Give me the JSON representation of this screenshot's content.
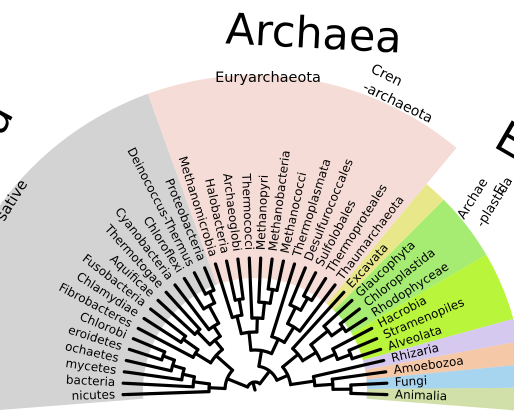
{
  "domain_titles": {
    "bacteria_fragment": "ia",
    "bacteria_sub_fragment": "sative",
    "archaea": "Archaea",
    "euryarchaeota": "Euryarchaeota",
    "crenarchaeota_top": "Cren",
    "crenarchaeota_bottom": "-archaeota",
    "eukaryota_fragment": "E",
    "archaeplastida_top": "Archae",
    "archaeplastida_bottom": "-plastida"
  },
  "colors": {
    "bacteria_region": "#d3d3d3",
    "archaea_region": "#f6dcd6",
    "excavata_region": "#e8e88a",
    "plants_region": "#a6ec72",
    "sar_region": "#b9f53b",
    "rhizaria_region": "#d6c9f0",
    "amoebozoa_region": "#f5c8a8",
    "fungi_region": "#a7d4ee",
    "animalia_region": "#d0e0a8",
    "branch_color": "#000000"
  },
  "leaves": [
    {
      "group": "bacteria",
      "label": "nicutes"
    },
    {
      "group": "bacteria",
      "label": "bacteria"
    },
    {
      "group": "bacteria",
      "label": "mycetes"
    },
    {
      "group": "bacteria",
      "label": "ochaetes"
    },
    {
      "group": "bacteria",
      "label": "eroidetes"
    },
    {
      "group": "bacteria",
      "label": "Chlorobi"
    },
    {
      "group": "bacteria",
      "label": "Fibrobacteres"
    },
    {
      "group": "bacteria",
      "label": "Chlamydiae"
    },
    {
      "group": "bacteria",
      "label": "Fusobacteria"
    },
    {
      "group": "bacteria",
      "label": "Aquificae"
    },
    {
      "group": "bacteria",
      "label": "Thermotogae"
    },
    {
      "group": "bacteria",
      "label": "Cyanobacteria"
    },
    {
      "group": "bacteria",
      "label": "Chloroflexi"
    },
    {
      "group": "bacteria",
      "label": "Deinococcus-Thermus"
    },
    {
      "group": "bacteria",
      "label": "Proteobacteria"
    },
    {
      "group": "archaea",
      "label": "Methanomicrobia"
    },
    {
      "group": "archaea",
      "label": "Halobacteria"
    },
    {
      "group": "archaea",
      "label": "Archaeoglobi"
    },
    {
      "group": "archaea",
      "label": "Thermococci"
    },
    {
      "group": "archaea",
      "label": "Methanopyri"
    },
    {
      "group": "archaea",
      "label": "Methanobacteria"
    },
    {
      "group": "archaea",
      "label": "Methanococci"
    },
    {
      "group": "archaea",
      "label": "Thermoplasmata"
    },
    {
      "group": "archaea",
      "label": "Desulfurococcales"
    },
    {
      "group": "archaea",
      "label": "Sulfolobales"
    },
    {
      "group": "archaea",
      "label": "Thermoproteales"
    },
    {
      "group": "archaea",
      "label": "Thaumarchaeota"
    },
    {
      "group": "eukaryota",
      "label": "Excavata"
    },
    {
      "group": "eukaryota",
      "label": "Glaucophyta"
    },
    {
      "group": "eukaryota",
      "label": "Chloroplastida"
    },
    {
      "group": "eukaryota",
      "label": "Rhodophyceae"
    },
    {
      "group": "eukaryota",
      "label": "Hacrobia"
    },
    {
      "group": "eukaryota",
      "label": "Stramenopiles"
    },
    {
      "group": "eukaryota",
      "label": "Alveolata"
    },
    {
      "group": "eukaryota",
      "label": "Rhizaria"
    },
    {
      "group": "eukaryota",
      "label": "Amoebozoa"
    },
    {
      "group": "eukaryota",
      "label": "Fungi"
    },
    {
      "group": "eukaryota",
      "label": "Animalia"
    }
  ]
}
